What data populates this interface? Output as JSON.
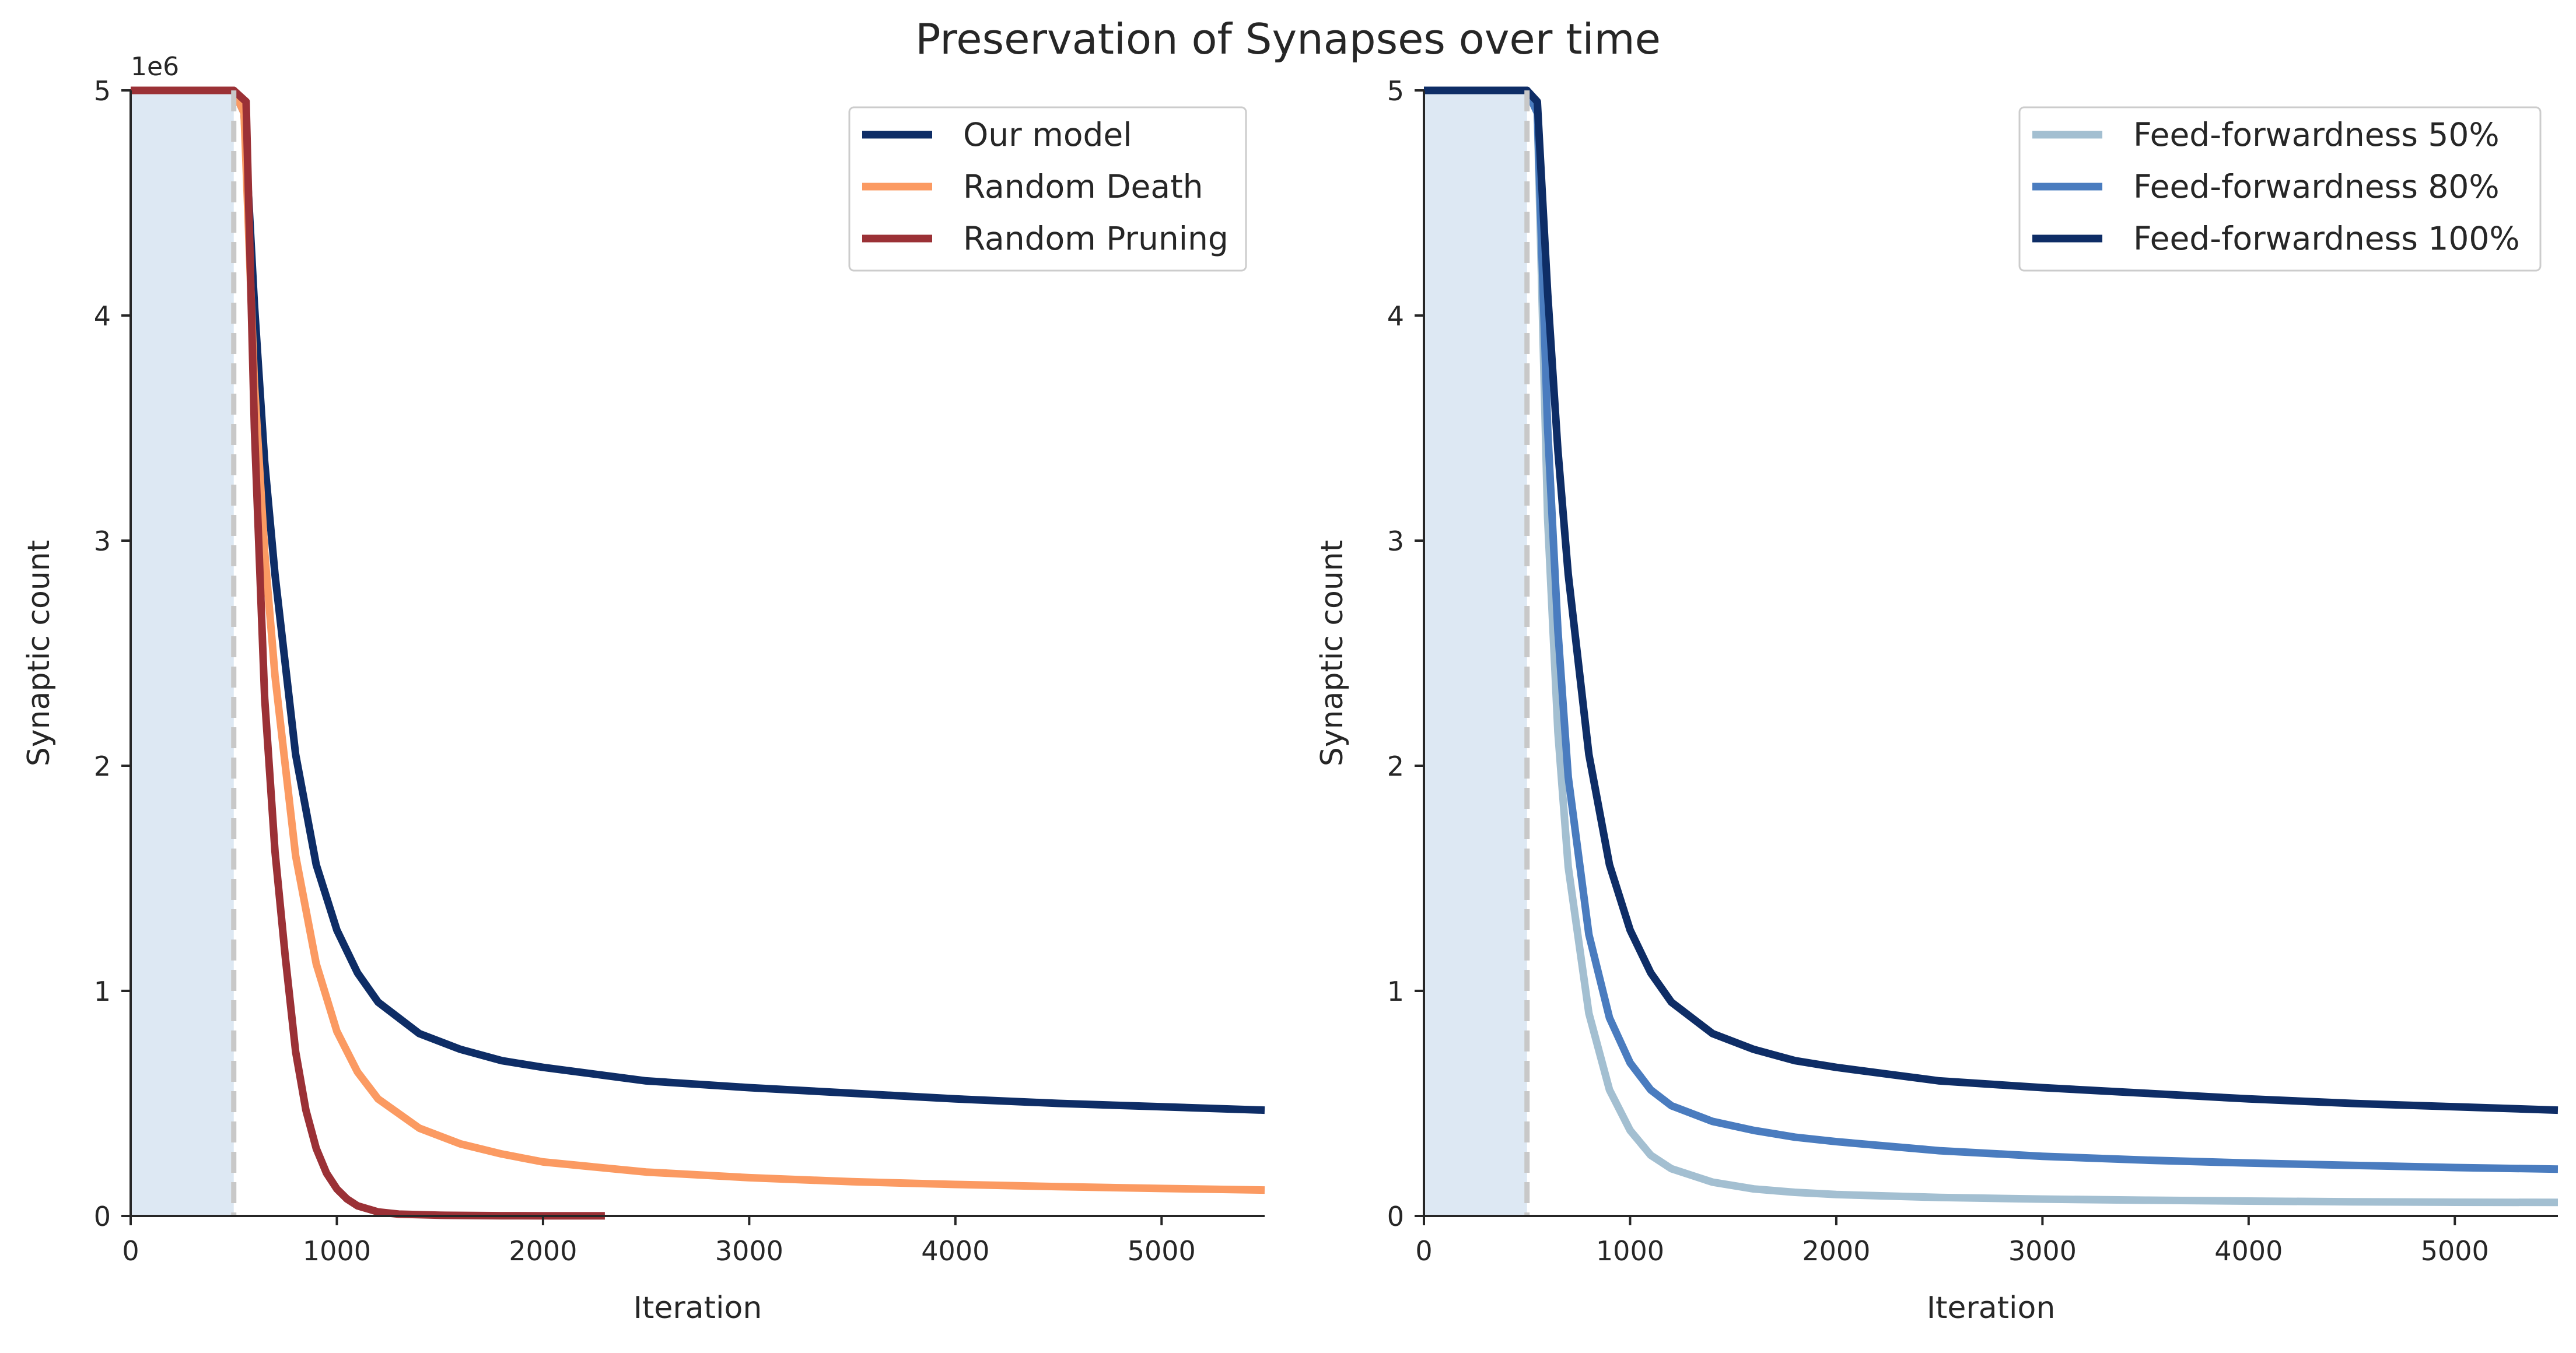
{
  "figure_title": "Preservation of Synapses over time",
  "colors": {
    "shade": "#dde8f3",
    "marker_line": "#c8c8c8",
    "axis": "#262626",
    "legend_border": "#cccccc"
  },
  "chart_data": [
    {
      "type": "line",
      "name": "left-panel",
      "xlabel": "Iteration",
      "ylabel": "Synaptic count",
      "offset_text": "1e6",
      "xlim": [
        0,
        5500
      ],
      "ylim": [
        0,
        5000000
      ],
      "xticks": [
        0,
        1000,
        2000,
        3000,
        4000,
        5000
      ],
      "xtick_labels": [
        "0",
        "1000",
        "2000",
        "3000",
        "4000",
        "5000"
      ],
      "yticks": [
        0,
        1000000,
        2000000,
        3000000,
        4000000,
        5000000
      ],
      "ytick_labels": [
        "0",
        "1",
        "2",
        "3",
        "4",
        "5"
      ],
      "shaded_region": [
        0,
        500
      ],
      "vertical_marker_x": 500,
      "legend_position": "top-right",
      "series": [
        {
          "name": "Our model",
          "color": "#0e2d66",
          "x": [
            0,
            500,
            550,
            600,
            650,
            700,
            800,
            900,
            1000,
            1100,
            1200,
            1400,
            1600,
            1800,
            2000,
            2500,
            3000,
            3500,
            4000,
            4500,
            5000,
            5500
          ],
          "y": [
            5000000,
            5000000,
            4900000,
            4050000,
            3350000,
            2850000,
            2050000,
            1560000,
            1270000,
            1080000,
            950000,
            810000,
            740000,
            690000,
            660000,
            600000,
            570000,
            545000,
            520000,
            500000,
            485000,
            470000
          ]
        },
        {
          "name": "Random Death",
          "color": "#fb9a62",
          "x": [
            0,
            500,
            550,
            600,
            650,
            700,
            800,
            900,
            1000,
            1100,
            1200,
            1400,
            1600,
            1800,
            2000,
            2500,
            3000,
            3500,
            4000,
            4500,
            5000,
            5500
          ],
          "y": [
            5000000,
            5000000,
            4900000,
            3700000,
            2950000,
            2400000,
            1600000,
            1120000,
            820000,
            640000,
            520000,
            390000,
            320000,
            275000,
            240000,
            195000,
            170000,
            152000,
            140000,
            130000,
            122000,
            115000
          ]
        },
        {
          "name": "Random Pruning",
          "color": "#9b3136",
          "x": [
            0,
            500,
            560,
            600,
            650,
            700,
            750,
            800,
            850,
            900,
            950,
            1000,
            1050,
            1100,
            1200,
            1300,
            1500,
            1800,
            2000,
            2300
          ],
          "y": [
            5000000,
            5000000,
            4950000,
            3500000,
            2300000,
            1620000,
            1150000,
            730000,
            470000,
            300000,
            190000,
            120000,
            75000,
            45000,
            18000,
            8000,
            3000,
            1000,
            500,
            500
          ]
        }
      ]
    },
    {
      "type": "line",
      "name": "right-panel",
      "xlabel": "Iteration",
      "ylabel": "Synaptic count",
      "offset_text": "",
      "xlim": [
        0,
        5500
      ],
      "ylim": [
        0,
        5000000
      ],
      "xticks": [
        0,
        1000,
        2000,
        3000,
        4000,
        5000
      ],
      "xtick_labels": [
        "0",
        "1000",
        "2000",
        "3000",
        "4000",
        "5000"
      ],
      "yticks": [
        0,
        1000000,
        2000000,
        3000000,
        4000000,
        5000000
      ],
      "ytick_labels": [
        "0",
        "1",
        "2",
        "3",
        "4",
        "5"
      ],
      "shaded_region": [
        0,
        500
      ],
      "vertical_marker_x": 500,
      "legend_position": "top-right",
      "series": [
        {
          "name": "Feed-forwardness 50%",
          "color": "#a3bfd1",
          "x": [
            0,
            500,
            550,
            600,
            650,
            700,
            800,
            900,
            1000,
            1100,
            1200,
            1400,
            1600,
            1800,
            2000,
            2500,
            3000,
            3500,
            4000,
            4500,
            5000,
            5500
          ],
          "y": [
            5000000,
            5000000,
            4900000,
            3100000,
            2150000,
            1550000,
            900000,
            560000,
            380000,
            270000,
            210000,
            150000,
            120000,
            105000,
            95000,
            82000,
            75000,
            70000,
            66000,
            63000,
            61000,
            60000
          ]
        },
        {
          "name": "Feed-forwardness 80%",
          "color": "#4a7cbf",
          "x": [
            0,
            500,
            550,
            600,
            650,
            700,
            800,
            900,
            1000,
            1100,
            1200,
            1400,
            1600,
            1800,
            2000,
            2500,
            3000,
            3500,
            4000,
            4500,
            5000,
            5500
          ],
          "y": [
            5000000,
            5000000,
            4900000,
            3500000,
            2600000,
            1950000,
            1250000,
            880000,
            680000,
            560000,
            490000,
            420000,
            380000,
            350000,
            330000,
            290000,
            265000,
            248000,
            235000,
            225000,
            215000,
            208000
          ]
        },
        {
          "name": "Feed-forwardness 100%",
          "color": "#0e2d66",
          "x": [
            0,
            500,
            550,
            600,
            650,
            700,
            800,
            900,
            1000,
            1100,
            1200,
            1400,
            1600,
            1800,
            2000,
            2500,
            3000,
            3500,
            4000,
            4500,
            5000,
            5500
          ],
          "y": [
            5000000,
            5000000,
            4950000,
            4100000,
            3400000,
            2850000,
            2050000,
            1560000,
            1270000,
            1080000,
            950000,
            810000,
            740000,
            690000,
            660000,
            600000,
            570000,
            545000,
            520000,
            500000,
            485000,
            470000
          ]
        }
      ]
    }
  ]
}
